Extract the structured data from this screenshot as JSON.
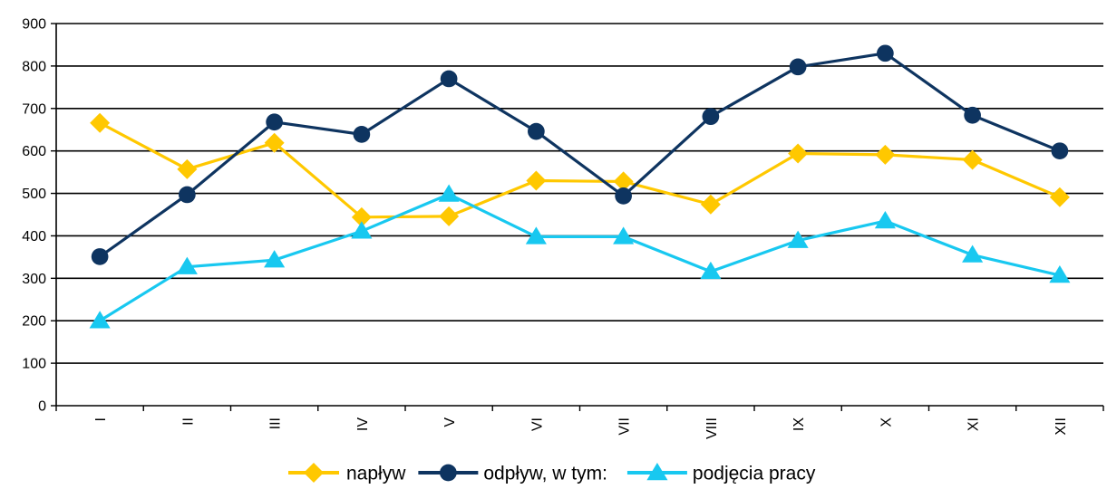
{
  "chart_data": {
    "type": "line",
    "categories": [
      "I",
      "II",
      "III",
      "IV",
      "V",
      "VI",
      "VII",
      "VIII",
      "IX",
      "X",
      "XI",
      "XII"
    ],
    "ylim": [
      0,
      900
    ],
    "yticks": [
      0,
      100,
      200,
      300,
      400,
      500,
      600,
      700,
      800,
      900
    ],
    "grid": true,
    "legend": "bottom",
    "series": [
      {
        "name": "napływ",
        "color": "#FFC800",
        "marker": "diamond",
        "values": [
          666,
          557,
          619,
          444,
          446,
          530,
          528,
          474,
          594,
          591,
          579,
          491
        ]
      },
      {
        "name": "odpływ, w tym:",
        "color": "#0E3460",
        "marker": "circle",
        "values": [
          351,
          497,
          668,
          639,
          770,
          646,
          494,
          681,
          798,
          830,
          684,
          600
        ]
      },
      {
        "name": "podjęcia pracy",
        "color": "#18C8F0",
        "marker": "triangle",
        "values": [
          200,
          327,
          343,
          411,
          498,
          398,
          398,
          316,
          389,
          435,
          355,
          307
        ]
      }
    ]
  }
}
